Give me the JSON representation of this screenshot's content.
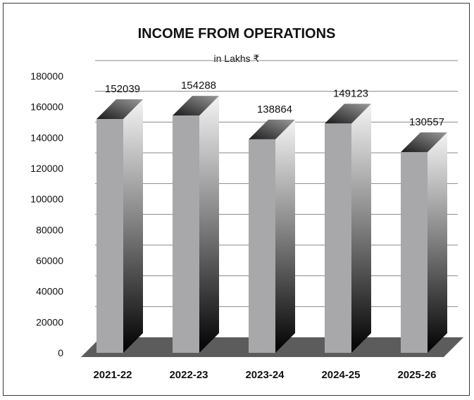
{
  "chart_data": {
    "type": "bar",
    "title": "INCOME FROM OPERATIONS",
    "subtitle": "in Lakhs ₹",
    "xlabel": "",
    "ylabel": "",
    "categories": [
      "2021-22",
      "2022-23",
      "2023-24",
      "2024-25",
      "2025-26"
    ],
    "values": [
      152039,
      154288,
      138864,
      149123,
      130557
    ],
    "ylim": [
      0,
      180000
    ],
    "yticks": [
      0,
      20000,
      40000,
      60000,
      80000,
      100000,
      120000,
      140000,
      160000,
      180000
    ],
    "grid": true,
    "colors": {
      "bar_front": "#a8a8aa",
      "floor": "#5c5c5c",
      "grid": "#888888",
      "text": "#111111"
    }
  }
}
